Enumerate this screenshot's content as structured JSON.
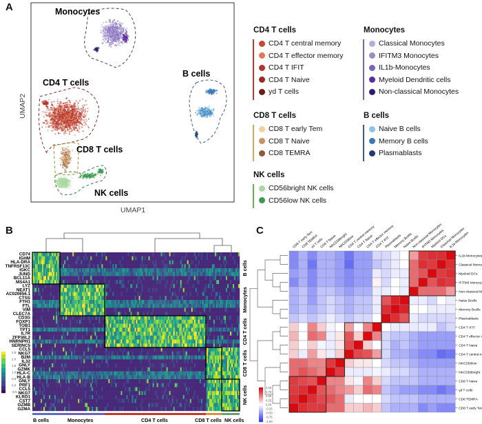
{
  "panels": {
    "a": "A",
    "b": "B",
    "c": "C"
  },
  "chart_data": [
    {
      "type": "scatter",
      "xlabel": "UMAP1",
      "ylabel": "UMAP2",
      "cluster_labels": [
        "Monocytes",
        "CD4 T cells",
        "CD8 T cells",
        "NK cells",
        "B cells"
      ],
      "legend": [
        {
          "group": "CD4 T cells",
          "color": "#c0392b",
          "items": [
            {
              "label": "CD4 T central memory",
              "color": "#c8473a"
            },
            {
              "label": "CD4 T effector memory",
              "color": "#e2775a"
            },
            {
              "label": "CD4 T IFIT",
              "color": "#b3352b"
            },
            {
              "label": "CD4 T Naive",
              "color": "#9c2a22"
            },
            {
              "label": "yd T cells",
              "color": "#6b1d1a"
            }
          ]
        },
        {
          "group": "CD8 T cells",
          "color": "#d9a55a",
          "items": [
            {
              "label": "CD8 T early Tem",
              "color": "#f6cfa0"
            },
            {
              "label": "CD8 T Naive",
              "color": "#c99262"
            },
            {
              "label": "CD8 TEMRA",
              "color": "#8a5a3a"
            }
          ]
        },
        {
          "group": "NK cells",
          "color": "#6ab04c",
          "items": [
            {
              "label": "CD56bright NK cells",
              "color": "#a9d9a0"
            },
            {
              "label": "CD56low NK cells",
              "color": "#3c9a50"
            }
          ]
        },
        {
          "group": "Monocytes",
          "color": "#7a62b8",
          "items": [
            {
              "label": "Classical Monocytes",
              "color": "#b9abd9"
            },
            {
              "label": "IFITM3 Monocytes",
              "color": "#9d8ac9"
            },
            {
              "label": "IL1b-Monocytes",
              "color": "#7b63b9"
            },
            {
              "label": "Myeloid Dendritic cells",
              "color": "#5a2ea0"
            },
            {
              "label": "Non-classical Monocytes",
              "color": "#2e1a6e"
            }
          ]
        },
        {
          "group": "B cells",
          "color": "#3a5a9a",
          "items": [
            {
              "label": "Naive B cells",
              "color": "#8ac4e8"
            },
            {
              "label": "Memory B cells",
              "color": "#3a7ab8"
            },
            {
              "label": "Plasmablasts",
              "color": "#1e3a78"
            }
          ]
        }
      ]
    },
    {
      "type": "heatmap",
      "genes": [
        "CD74",
        "IGHM",
        "HLA-DRA",
        "TNFRSF13C",
        "IGKC",
        "JUND",
        "BCL11A",
        "MS4A1",
        "LYZ",
        "NEAT1",
        "AC020656.1",
        "CTSS",
        "FTH1",
        "FTL",
        "VIM",
        "CLEC7A",
        "CD3G",
        "FOXP1",
        "TOB1",
        "TPT1",
        "IL7R",
        "ZFP36L2",
        "HNRNPH1",
        "SERINC5",
        "CCL5",
        "NKG7",
        "B2M",
        "IL32",
        "GNLY",
        "GZMK",
        "HLA-C",
        "HLA-B",
        "GNLY",
        "PRF1",
        "CCL5",
        "NKG7",
        "KLRD1",
        "CST7",
        "GZMB",
        "GZMA"
      ],
      "clusters": [
        {
          "label": "B cells",
          "color": "#5b6fc0"
        },
        {
          "label": "Monocytes",
          "color": "#6a62b8"
        },
        {
          "label": "CD4 T cells",
          "color": "#c0392b"
        },
        {
          "label": "CD8 T cells",
          "color": "#e0903a"
        },
        {
          "label": "NK cells",
          "color": "#6aa070"
        }
      ],
      "colorbar_ticks": [
        "2.5",
        "2.0",
        "1.5",
        "1.0",
        "0.5",
        "0.0",
        "-0.5"
      ],
      "colormap": "viridis"
    },
    {
      "type": "heatmap",
      "row_labels": [
        "IL1b-Monocytes",
        "Classical Monocytes",
        "Myeloid DCs",
        "IFITM3 Monocytes",
        "Non-classical Monocytes",
        "Naive Bcells",
        "Memory Bcells",
        "Plasmablasts",
        "CD4 T IFIT",
        "CD4 T effector memory",
        "CD4 T Naive",
        "CD4 T central memory",
        "NKCD56low",
        "NKCD56bright",
        "CD8 T Naive",
        "γd T cells",
        "CD8 TEMRA",
        "CD8 T early Tem"
      ],
      "col_labels": [
        "CD8 T early Tem",
        "CD8 TEMRA",
        "γd T cells",
        "CD8 T Naive",
        "NKCD56bright",
        "NKCD56low",
        "CD4 T central memory",
        "CD4 T Naive",
        "CD4 T effector memory",
        "CD4 T IFIT",
        "Plasmablasts",
        "Memory Bcells",
        "Naive Bcells",
        "Non-classical Monocytes",
        "IFITM3 Monocytes",
        "Myeloid DCs",
        "Classical Monocytes",
        "IL1b-Monocytes"
      ],
      "values": [
        [
          -0.6,
          -0.4,
          -0.6,
          -0.4,
          -0.4,
          -0.5,
          -0.7,
          -0.5,
          -0.5,
          -0.2,
          -0.2,
          -0.1,
          0.0,
          0.4,
          0.8,
          0.85,
          0.85,
          1
        ],
        [
          -0.6,
          -0.4,
          -0.7,
          -0.4,
          -0.4,
          -0.5,
          -0.75,
          -0.5,
          -0.5,
          -0.3,
          -0.2,
          -0.1,
          0,
          0.6,
          0.85,
          0.8,
          1,
          0.85
        ],
        [
          -0.5,
          -0.4,
          -0.6,
          -0.4,
          -0.4,
          -0.5,
          -0.6,
          -0.5,
          -0.5,
          -0.1,
          -0.2,
          -0.1,
          -0.1,
          0.6,
          0.7,
          1,
          0.8,
          0.85
        ],
        [
          -0.6,
          -0.4,
          -0.6,
          -0.4,
          -0.4,
          -0.5,
          -0.6,
          -0.5,
          -0.5,
          0.05,
          -0.2,
          0,
          -0.1,
          0.6,
          1,
          0.7,
          0.85,
          0.8
        ],
        [
          -0.4,
          -0.3,
          -0.5,
          -0.3,
          -0.3,
          -0.4,
          -0.5,
          -0.4,
          -0.4,
          -0.1,
          -0.1,
          0,
          -0.1,
          1,
          0.6,
          0.6,
          0.6,
          0.4
        ],
        [
          -0.4,
          -0.3,
          -0.5,
          -0.3,
          -0.2,
          -0.3,
          -0.4,
          -0.3,
          -0.3,
          -0.1,
          0.7,
          0.9,
          1,
          -0.1,
          -0.1,
          -0.2,
          0,
          -0.1
        ],
        [
          -0.4,
          -0.3,
          -0.4,
          -0.3,
          -0.2,
          -0.3,
          -0.4,
          -0.3,
          -0.3,
          -0.1,
          0.85,
          1,
          0.9,
          0,
          0,
          -0.1,
          -0.1,
          -0.1
        ],
        [
          -0.3,
          -0.2,
          -0.3,
          -0.2,
          -0.1,
          -0.2,
          -0.3,
          -0.2,
          -0.2,
          0,
          1,
          0.85,
          0.7,
          -0.1,
          -0.2,
          -0.2,
          -0.2,
          -0.2
        ],
        [
          0.2,
          0.0,
          0.5,
          0.2,
          -0.05,
          0,
          0.4,
          0,
          0.5,
          1,
          0,
          -0.1,
          -0.1,
          -0.1,
          -0.1,
          -0.1,
          -0.3,
          -0.2
        ],
        [
          0.3,
          0.0,
          0.6,
          0.5,
          -0.1,
          0.1,
          0.7,
          0.2,
          1,
          0.5,
          -0.2,
          -0.3,
          -0.3,
          -0.4,
          -0.5,
          -0.5,
          -0.5,
          -0.5
        ],
        [
          0.2,
          0,
          0.2,
          -0.05,
          -0.1,
          0.1,
          0.75,
          1,
          0.2,
          0,
          -0.2,
          -0.4,
          -0.3,
          -0.4,
          -0.5,
          -0.5,
          -0.5,
          -0.5
        ],
        [
          0.2,
          -0.1,
          0.4,
          0.1,
          -0.1,
          0.2,
          1,
          0.75,
          0.7,
          0.4,
          -0.2,
          -0.4,
          -0.4,
          -0.5,
          -0.6,
          -0.6,
          -0.75,
          -0.7
        ],
        [
          0.6,
          0.6,
          0.5,
          0.5,
          0.8,
          1,
          0.2,
          0.1,
          0.1,
          0,
          -0.2,
          -0.3,
          -0.3,
          -0.4,
          -0.5,
          -0.5,
          -0.5,
          -0.5
        ],
        [
          0.6,
          0.7,
          0.6,
          0.5,
          1,
          0.8,
          -0.1,
          -0.1,
          -0.1,
          -0.05,
          -0.1,
          -0.2,
          -0.2,
          -0.3,
          -0.4,
          -0.4,
          -0.4,
          -0.4
        ],
        [
          0.8,
          0.75,
          0.7,
          1,
          0.5,
          0.5,
          0.1,
          -0.05,
          0.5,
          0.2,
          -0.2,
          -0.3,
          -0.3,
          -0.3,
          -0.4,
          -0.4,
          -0.4,
          -0.4
        ],
        [
          0.8,
          0.85,
          1,
          0.7,
          0.6,
          0.5,
          0.4,
          0.2,
          0.6,
          0.5,
          -0.3,
          -0.4,
          -0.5,
          -0.5,
          -0.6,
          -0.6,
          -0.7,
          -0.6
        ],
        [
          0.85,
          1,
          0.85,
          0.75,
          0.7,
          0.6,
          -0.1,
          0,
          0,
          0,
          -0.2,
          -0.3,
          -0.3,
          -0.3,
          -0.4,
          -0.4,
          -0.4,
          -0.4
        ],
        [
          1,
          0.85,
          0.8,
          0.8,
          0.6,
          0.6,
          0.2,
          0.2,
          0.3,
          0.2,
          -0.3,
          -0.4,
          -0.4,
          -0.4,
          -0.6,
          -0.5,
          -0.6,
          -0.6
        ]
      ],
      "colorbar_ticks": [
        "1.00",
        "0.75",
        "0.50",
        "0.25",
        "0.00",
        "-0.25",
        "-0.50",
        "-0.75",
        "-1.00"
      ],
      "range": [
        -1,
        1
      ],
      "colormap": "blue-white-red"
    }
  ]
}
